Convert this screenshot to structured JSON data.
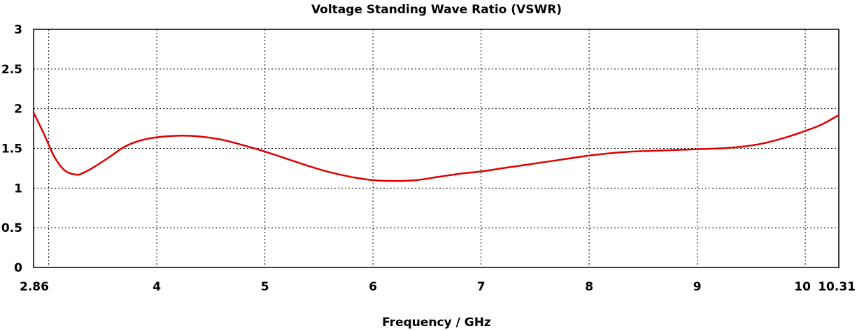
{
  "chart_data": {
    "type": "line",
    "title": "Voltage Standing Wave Ratio (VSWR)",
    "xlabel": "Frequency / GHz",
    "ylabel": "",
    "xlim": [
      2.86,
      10.31
    ],
    "ylim": [
      0,
      3
    ],
    "x_ticks": [
      2.86,
      4,
      5,
      6,
      7,
      8,
      9,
      10,
      10.31
    ],
    "x_tick_labels": [
      "2.86",
      "4",
      "5",
      "6",
      "7",
      "8",
      "9",
      "10",
      "10.31"
    ],
    "x_grid": [
      3.0,
      4,
      5,
      6,
      7,
      8,
      9,
      10
    ],
    "y_ticks": [
      0,
      0.5,
      1,
      1.5,
      2,
      2.5,
      3
    ],
    "y_tick_labels": [
      "0",
      "0.5",
      "1",
      "1.5",
      "2",
      "2.5",
      "3"
    ],
    "grid": true,
    "series": [
      {
        "name": "VSWR",
        "color": "#e00000",
        "x": [
          2.86,
          2.95,
          3.05,
          3.15,
          3.25,
          3.3,
          3.4,
          3.55,
          3.7,
          3.85,
          4.0,
          4.2,
          4.4,
          4.6,
          4.8,
          5.0,
          5.2,
          5.4,
          5.6,
          5.8,
          6.0,
          6.2,
          6.4,
          6.6,
          6.8,
          7.0,
          7.2,
          7.4,
          7.6,
          7.8,
          8.0,
          8.2,
          8.4,
          8.6,
          8.8,
          9.0,
          9.2,
          9.4,
          9.6,
          9.8,
          10.0,
          10.15,
          10.31
        ],
        "y": [
          1.95,
          1.7,
          1.4,
          1.22,
          1.17,
          1.18,
          1.25,
          1.38,
          1.52,
          1.6,
          1.64,
          1.66,
          1.65,
          1.61,
          1.54,
          1.46,
          1.37,
          1.28,
          1.2,
          1.14,
          1.1,
          1.09,
          1.1,
          1.14,
          1.18,
          1.21,
          1.25,
          1.29,
          1.33,
          1.37,
          1.41,
          1.44,
          1.46,
          1.47,
          1.48,
          1.49,
          1.5,
          1.52,
          1.56,
          1.63,
          1.72,
          1.8,
          1.92
        ]
      }
    ]
  }
}
